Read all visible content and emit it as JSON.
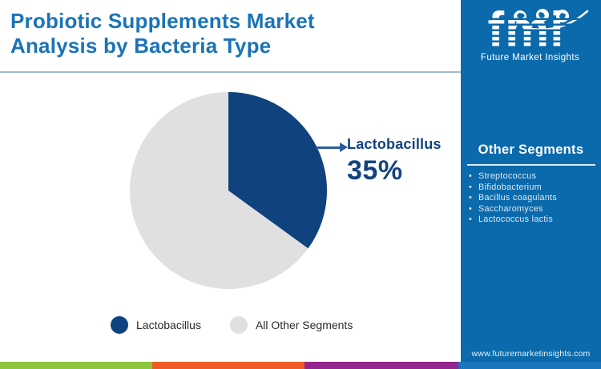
{
  "header": {
    "title_line1": "Probiotic Supplements Market",
    "title_line2": "Analysis by Bacteria Type"
  },
  "logo": {
    "acronym": "fmi",
    "name": "Future Market Insights"
  },
  "chart_data": {
    "type": "pie",
    "title": "Probiotic Supplements Market Analysis by Bacteria Type",
    "labels": [
      "Lactobacillus",
      "All Other Segments"
    ],
    "values": [
      35,
      65
    ],
    "colors": [
      "#10427f",
      "#e0e0e0"
    ],
    "start_angle_deg": 0,
    "direction": "clockwise",
    "legend_position": "bottom",
    "callout": {
      "label": "Lactobacillus",
      "value_text": "35%"
    }
  },
  "sidebar": {
    "other_segments_title": "Other Segments",
    "items": [
      "Streptococcus",
      "Bifidobacterium",
      "Bacillus coagulants",
      "Saccharomyces",
      "Lactococcus lactis"
    ],
    "website": "www.futuremarketinsights.com"
  },
  "footer": {
    "stripe_colors": [
      "#8dc63f",
      "#f05a28",
      "#93278f",
      "#1b75bc"
    ]
  },
  "theme": {
    "title_color": "#1a73b7",
    "sidebar_color": "#0a6aab",
    "accent_navy": "#12437f",
    "divider_color": "#9fbbd0"
  }
}
